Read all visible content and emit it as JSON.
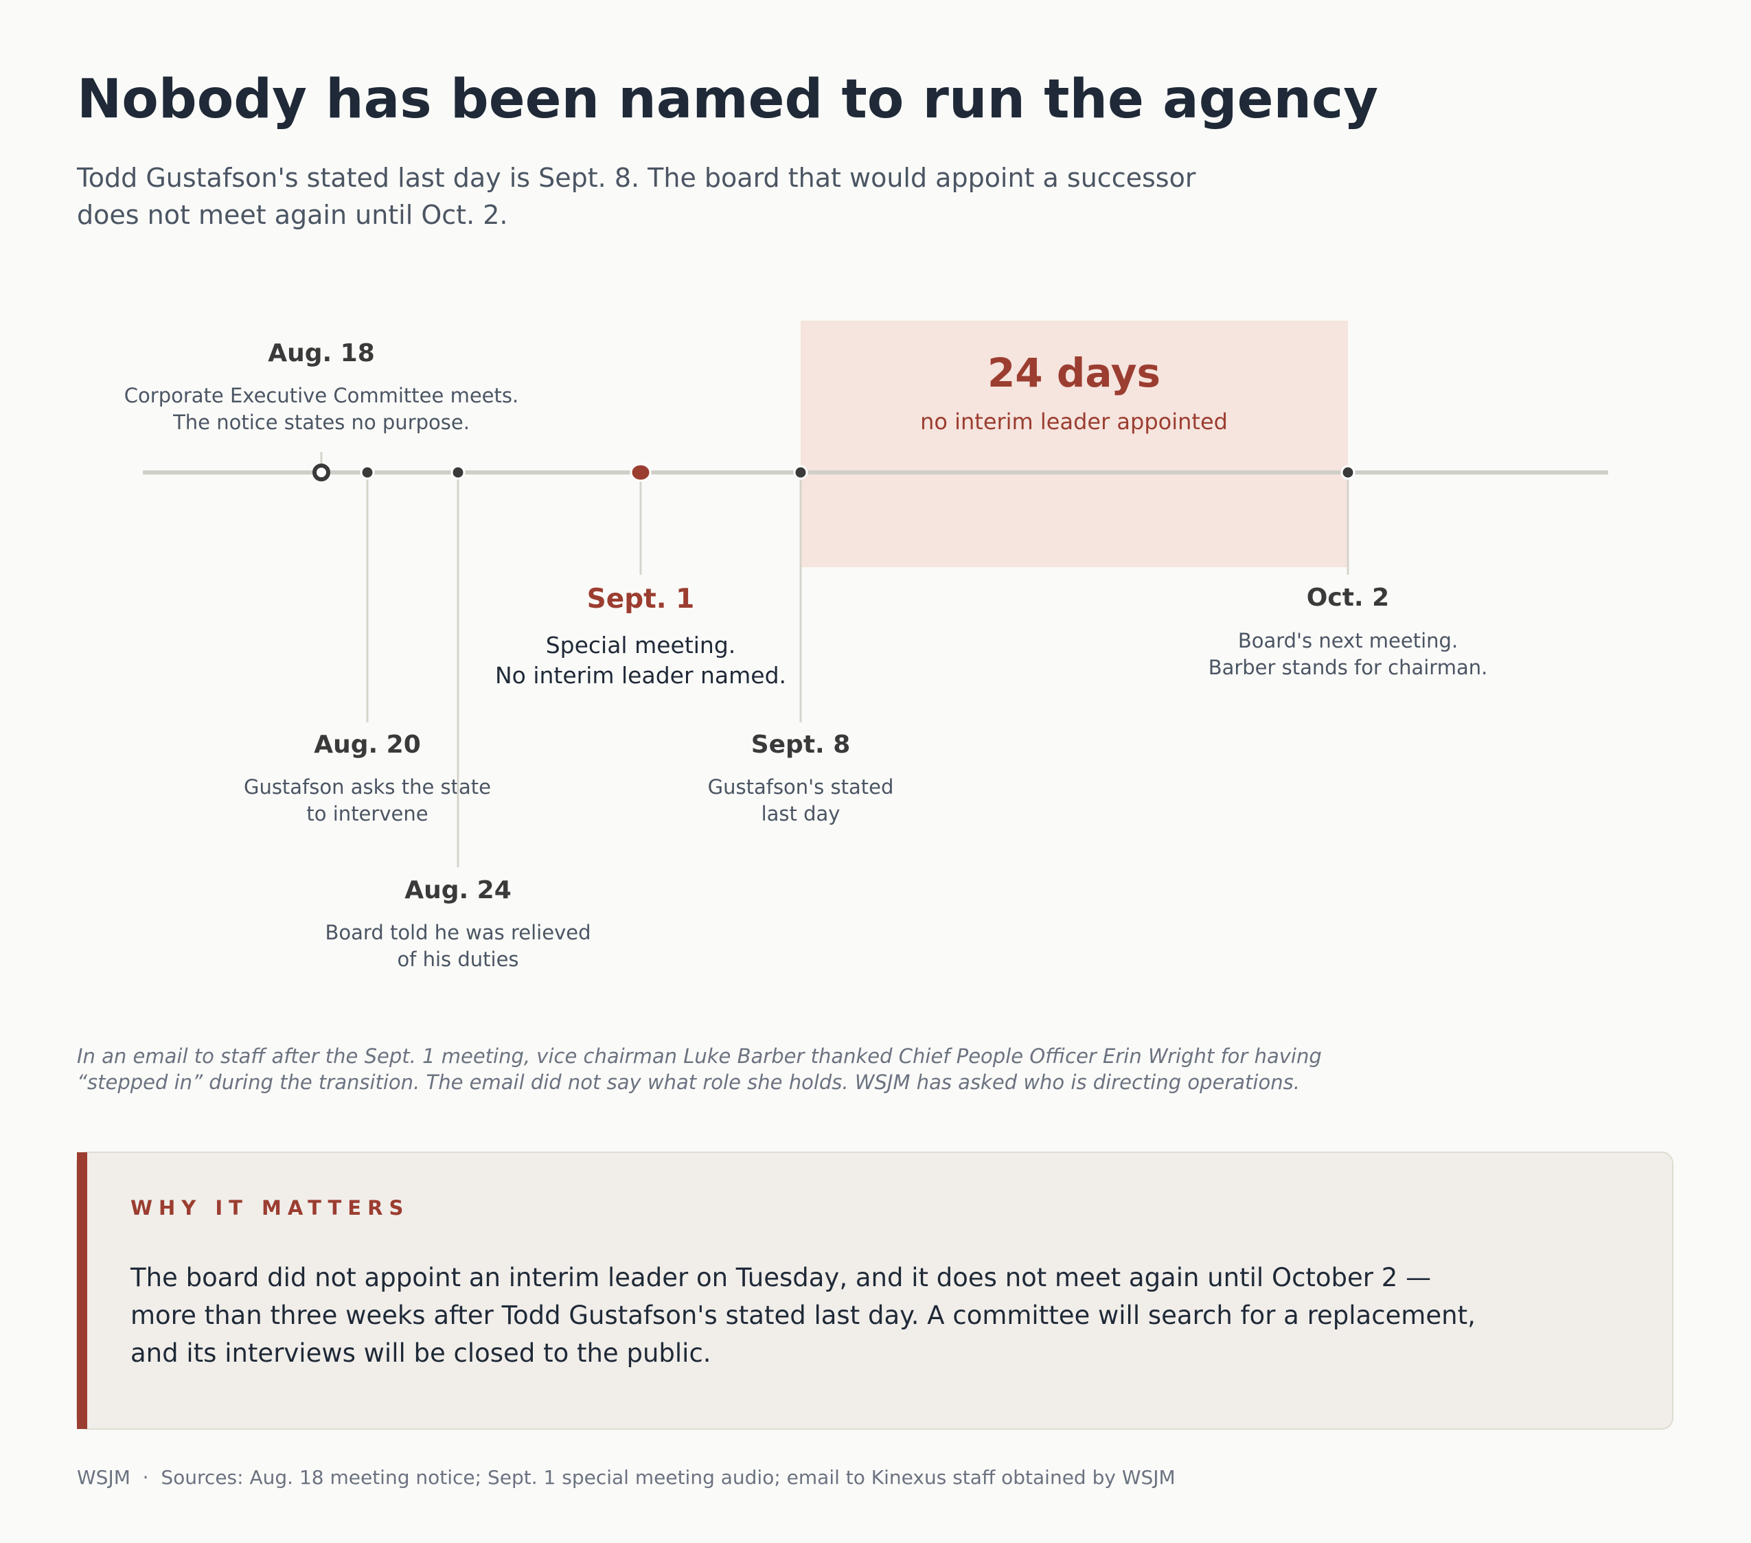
{
  "header": {
    "title": "Nobody has been named to run the agency",
    "subtitle": [
      "Todd Gustafson's stated last day is Sept. 8. The board that would appoint a successor",
      "does not meet again until Oct. 2."
    ]
  },
  "highlight": {
    "value": "24 days",
    "label": "no interim leader appointed"
  },
  "events": [
    {
      "date": "Aug. 18",
      "description": [
        "Corporate Executive Committee meets.",
        "The notice states no purpose."
      ]
    },
    {
      "date": "Aug. 20",
      "description": [
        "Gustafson asks the state",
        "to intervene"
      ]
    },
    {
      "date": "Aug. 24",
      "description": [
        "Board told he was relieved",
        "of his duties"
      ]
    },
    {
      "date": "Sept. 1",
      "description": [
        "Special meeting.",
        "No interim leader named."
      ]
    },
    {
      "date": "Sept. 8",
      "description": [
        "Gustafson's stated",
        "last day"
      ]
    },
    {
      "date": "Oct. 2",
      "description": [
        "Board's next meeting.",
        "Barber stands for chairman."
      ]
    }
  ],
  "note": [
    "In an email to staff after the Sept. 1 meeting, vice chairman Luke Barber thanked Chief People Officer Erin Wright for having",
    "“stepped in” during the transition. The email did not say what role she holds. WSJM has asked who is directing operations."
  ],
  "callout": {
    "heading": "WHY IT MATTERS",
    "body": [
      "The board did not appoint an interim leader on Tuesday, and it does not meet again until October 2 —",
      "more than three weeks after Todd Gustafson's stated last day. A committee will search for a replacement,",
      "and its interviews will be closed to the public."
    ]
  },
  "footer": "WSJM  ·  Sources: Aug. 18 meeting notice; Sept. 1 special meeting audio; email to Kinexus staff obtained by WSJM"
}
